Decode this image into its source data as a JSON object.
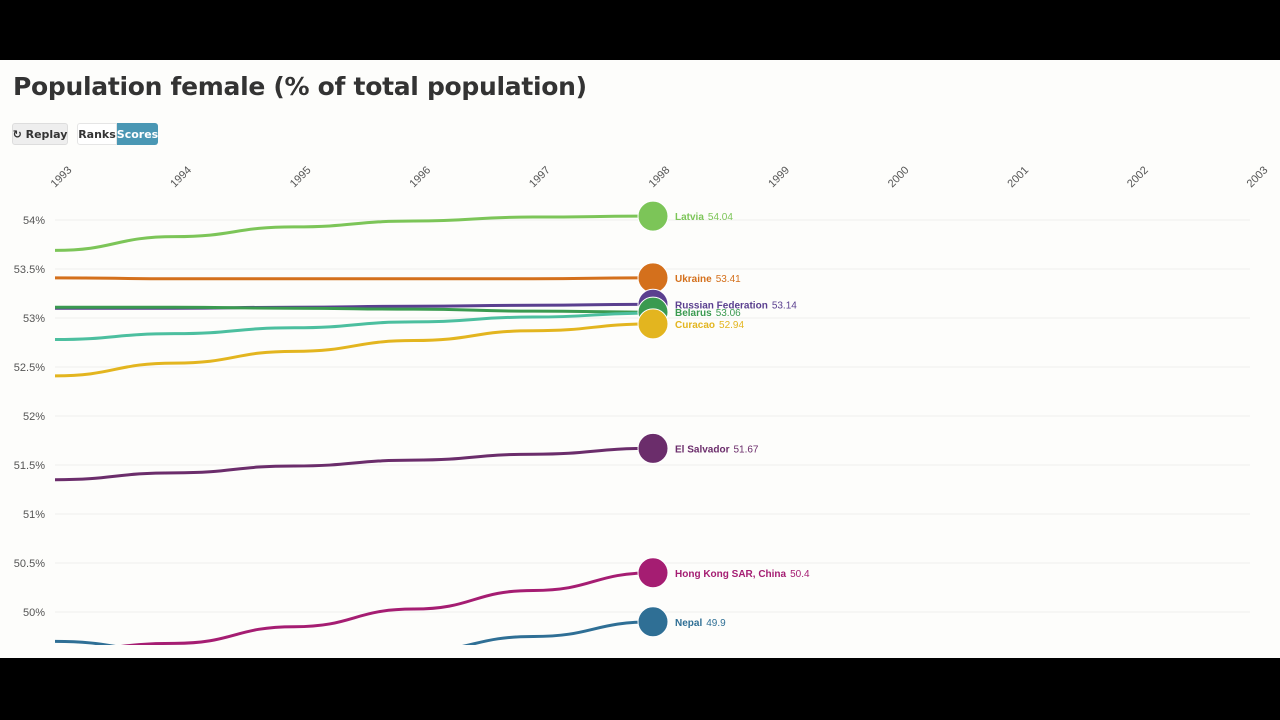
{
  "title": "Population female (% of total population)",
  "controls": {
    "replay": "Replay",
    "ranks": "Ranks",
    "scores": "Scores",
    "active": "Scores",
    "accent": "#4a97b4"
  },
  "chart_data": {
    "type": "line",
    "x": [
      1993,
      1994,
      1995,
      1996,
      1997,
      1998
    ],
    "x_ticks": [
      "1993",
      "1994",
      "1995",
      "1996",
      "1997",
      "1998",
      "1999",
      "2000",
      "2001",
      "2002",
      "2003"
    ],
    "y_ticks": [
      "54%",
      "53.5%",
      "53%",
      "52.5%",
      "52%",
      "51.5%",
      "51%",
      "50.5%",
      "50%"
    ],
    "ylim": [
      49.65,
      54.1
    ],
    "grid": true,
    "series": [
      {
        "name": "Latvia",
        "value_label": "54.04",
        "color": "#7cc558",
        "values": [
          53.69,
          53.83,
          53.93,
          53.99,
          54.03,
          54.04
        ]
      },
      {
        "name": "Ukraine",
        "value_label": "53.41",
        "color": "#d4701c",
        "values": [
          53.41,
          53.4,
          53.4,
          53.4,
          53.4,
          53.41
        ]
      },
      {
        "name": "Russian Federation",
        "value_label": "53.14",
        "color": "#5a3f8f",
        "values": [
          53.1,
          53.1,
          53.11,
          53.12,
          53.13,
          53.14
        ]
      },
      {
        "name": "Belarus",
        "value_label": "53.06",
        "color": "#3a9a50",
        "values": [
          53.11,
          53.11,
          53.1,
          53.09,
          53.07,
          53.06
        ]
      },
      {
        "name": "",
        "value_label": "",
        "color": "#4cbf9f",
        "values": [
          52.78,
          52.84,
          52.9,
          52.96,
          53.01,
          53.05
        ]
      },
      {
        "name": "Curacao",
        "value_label": "52.94",
        "color": "#e3b51f",
        "values": [
          52.41,
          52.54,
          52.66,
          52.77,
          52.87,
          52.94
        ]
      },
      {
        "name": "El Salvador",
        "value_label": "51.67",
        "color": "#6b2d6b",
        "values": [
          51.35,
          51.42,
          51.49,
          51.55,
          51.61,
          51.67
        ]
      },
      {
        "name": "Hong Kong SAR, China",
        "value_label": "50.4",
        "color": "#a51d72",
        "values": [
          49.6,
          49.68,
          49.85,
          50.03,
          50.22,
          50.4
        ]
      },
      {
        "name": "Nepal",
        "value_label": "49.9",
        "color": "#2f6f95",
        "values": [
          49.7,
          49.6,
          49.55,
          49.6,
          49.75,
          49.9
        ]
      }
    ]
  }
}
